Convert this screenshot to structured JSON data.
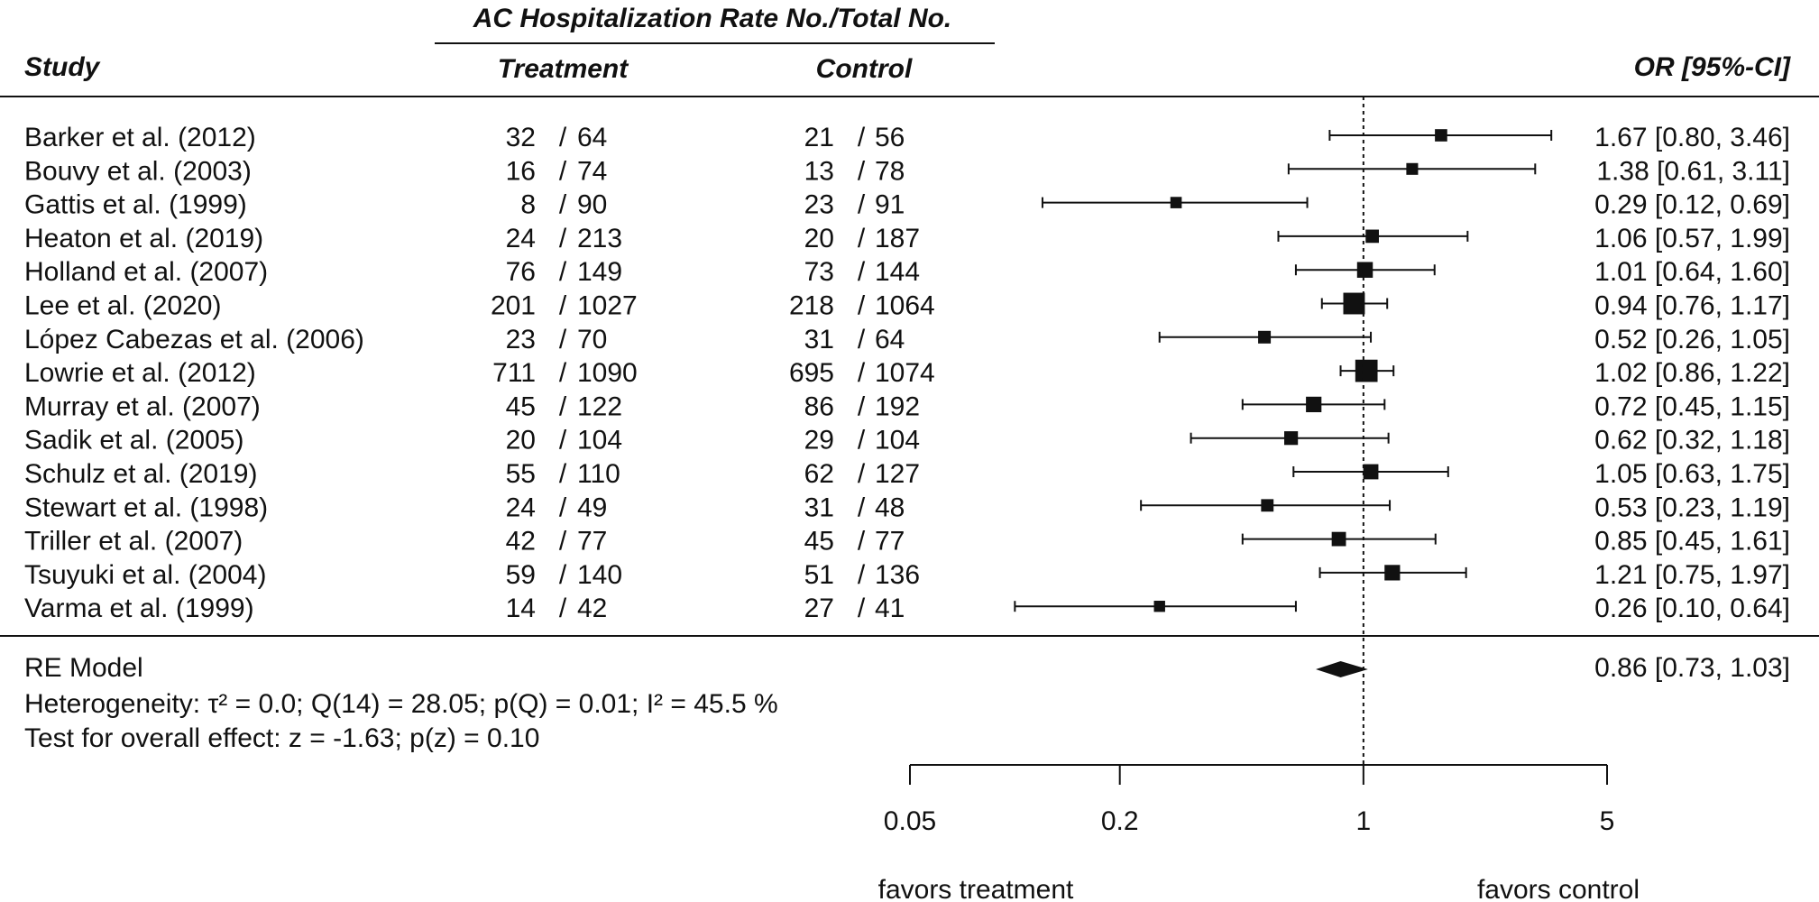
{
  "header": {
    "group_title": "AC Hospitalization Rate No./Total No.",
    "study": "Study",
    "treatment": "Treatment",
    "control": "Control",
    "or_ci": "OR [95%-CI]"
  },
  "chart_data": {
    "type": "forest",
    "x_scale": "log",
    "xlim": [
      0.05,
      5
    ],
    "x_ticks": [
      0.05,
      0.2,
      1,
      5
    ],
    "x_tick_labels": [
      "0.05",
      "0.2",
      "1",
      "5"
    ],
    "reference_line": 1,
    "favors_left": "favors treatment",
    "favors_right": "favors control",
    "studies": [
      {
        "name": "Barker et al. (2012)",
        "t_events": "32",
        "t_total": "64",
        "c_events": "21",
        "c_total": "56",
        "or": 1.67,
        "lo": 0.8,
        "hi": 3.46,
        "or_text": "1.67 [0.80, 3.46]",
        "weight": 2.0
      },
      {
        "name": "Bouvy et al. (2003)",
        "t_events": "16",
        "t_total": "74",
        "c_events": "13",
        "c_total": "78",
        "or": 1.38,
        "lo": 0.61,
        "hi": 3.11,
        "or_text": "1.38 [0.61, 3.11]",
        "weight": 1.7
      },
      {
        "name": "Gattis et al. (1999)",
        "t_events": "8",
        "t_total": "90",
        "c_events": "23",
        "c_total": "91",
        "or": 0.29,
        "lo": 0.12,
        "hi": 0.69,
        "or_text": "0.29 [0.12, 0.69]",
        "weight": 1.5
      },
      {
        "name": "Heaton et al. (2019)",
        "t_events": "24",
        "t_total": "213",
        "c_events": "20",
        "c_total": "187",
        "or": 1.06,
        "lo": 0.57,
        "hi": 1.99,
        "or_text": "1.06 [0.57, 1.99]",
        "weight": 2.6
      },
      {
        "name": "Holland et al. (2007)",
        "t_events": "76",
        "t_total": "149",
        "c_events": "73",
        "c_total": "144",
        "or": 1.01,
        "lo": 0.64,
        "hi": 1.6,
        "or_text": "1.01 [0.64, 1.60]",
        "weight": 4.5
      },
      {
        "name": "Lee et al. (2020)",
        "t_events": "201",
        "t_total": "1027",
        "c_events": "218",
        "c_total": "1064",
        "or": 0.94,
        "lo": 0.76,
        "hi": 1.17,
        "or_text": "0.94 [0.76, 1.17]",
        "weight": 11.0
      },
      {
        "name": "López Cabezas et al. (2006)",
        "t_events": "23",
        "t_total": "70",
        "c_events": "31",
        "c_total": "64",
        "or": 0.52,
        "lo": 0.26,
        "hi": 1.05,
        "or_text": "0.52 [0.26, 1.05]",
        "weight": 2.2
      },
      {
        "name": "Lowrie et al. (2012)",
        "t_events": "711",
        "t_total": "1090",
        "c_events": "695",
        "c_total": "1074",
        "or": 1.02,
        "lo": 0.86,
        "hi": 1.22,
        "or_text": "1.02 [0.86, 1.22]",
        "weight": 12.0
      },
      {
        "name": "Murray et al. (2007)",
        "t_events": "45",
        "t_total": "122",
        "c_events": "86",
        "c_total": "192",
        "or": 0.72,
        "lo": 0.45,
        "hi": 1.15,
        "or_text": "0.72 [0.45, 1.15]",
        "weight": 4.3
      },
      {
        "name": "Sadik et al. (2005)",
        "t_events": "20",
        "t_total": "104",
        "c_events": "29",
        "c_total": "104",
        "or": 0.62,
        "lo": 0.32,
        "hi": 1.18,
        "or_text": "0.62 [0.32, 1.18]",
        "weight": 2.9
      },
      {
        "name": "Schulz et al. (2019)",
        "t_events": "55",
        "t_total": "110",
        "c_events": "62",
        "c_total": "127",
        "or": 1.05,
        "lo": 0.63,
        "hi": 1.75,
        "or_text": "1.05 [0.63, 1.75]",
        "weight": 4.0
      },
      {
        "name": "Stewart et al. (1998)",
        "t_events": "24",
        "t_total": "49",
        "c_events": "31",
        "c_total": "48",
        "or": 0.53,
        "lo": 0.23,
        "hi": 1.19,
        "or_text": "0.53 [0.23, 1.19]",
        "weight": 2.1
      },
      {
        "name": "Triller et al. (2007)",
        "t_events": "42",
        "t_total": "77",
        "c_events": "45",
        "c_total": "77",
        "or": 0.85,
        "lo": 0.45,
        "hi": 1.61,
        "or_text": "0.85 [0.45, 1.61]",
        "weight": 3.3
      },
      {
        "name": "Tsuyuki et al. (2004)",
        "t_events": "59",
        "t_total": "140",
        "c_events": "51",
        "c_total": "136",
        "or": 1.21,
        "lo": 0.75,
        "hi": 1.97,
        "or_text": "1.21 [0.75, 1.97]",
        "weight": 4.3
      },
      {
        "name": "Varma et al. (1999)",
        "t_events": "14",
        "t_total": "42",
        "c_events": "27",
        "c_total": "41",
        "or": 0.26,
        "lo": 0.1,
        "hi": 0.64,
        "or_text": "0.26 [0.10, 0.64]",
        "weight": 1.4
      }
    ],
    "summary": {
      "label": "RE Model",
      "or": 0.86,
      "lo": 0.73,
      "hi": 1.03,
      "or_text": "0.86 [0.73, 1.03]",
      "heterogeneity_text": "Heterogeneity: τ² = 0.0; Q(14) = 28.05; p(Q) = 0.01; I² = 45.5 %",
      "overall_text": "Test for overall effect: z = -1.63; p(z) = 0.10"
    }
  }
}
